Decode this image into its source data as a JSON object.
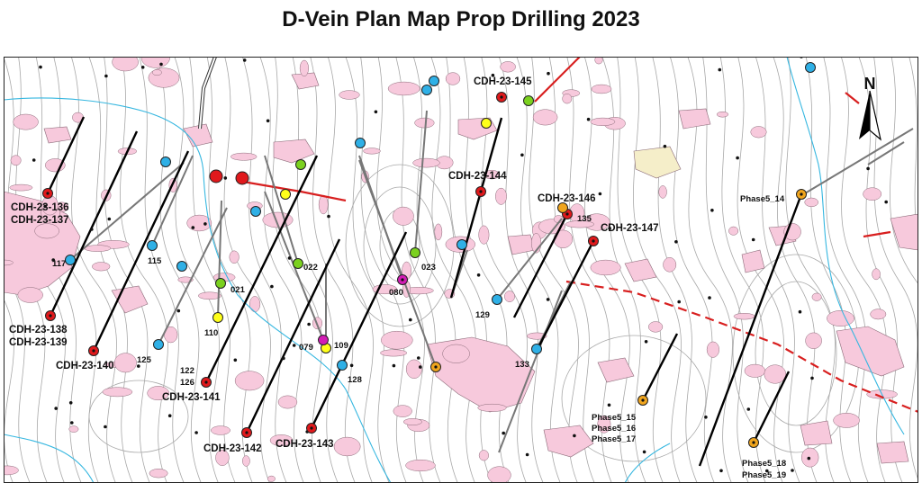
{
  "title": "D-Vein Plan Map Prop Drilling 2023",
  "north": "N",
  "colors": {
    "red": "#e0191c",
    "green": "#7bd11f",
    "blue": "#2fb0e6",
    "yellow": "#ffff1a",
    "magenta": "#d21cb4",
    "orange": "#f0a51e",
    "outcrop": "#f7c9dc",
    "contour": "#9a9a9a",
    "stream": "#36b7e0",
    "fault": "#d81f1f"
  },
  "labels": {
    "cdh136": "CDH-23-136",
    "cdh137": "CDH-23-137",
    "cdh138": "CDH-23-138",
    "cdh139": "CDH-23-139",
    "cdh140": "CDH-23-140",
    "cdh141": "CDH-23-141",
    "cdh142": "CDH-23-142",
    "cdh143": "CDH-23-143",
    "cdh144": "CDH-23-144",
    "cdh145": "CDH-23-145",
    "cdh146": "CDH-23-146",
    "cdh147": "CDH-23-147",
    "h117": "117",
    "h115": "115",
    "h125": "125",
    "h110": "110",
    "h021": "021",
    "h022": "022",
    "h122": "122",
    "h126": "126",
    "h079": "079",
    "h109": "109",
    "h128": "128",
    "h080": "080",
    "h023": "023",
    "h129": "129",
    "h133": "133",
    "h135": "135",
    "p14": "Phase5_14",
    "p15": "Phase5_15",
    "p16": "Phase5_16",
    "p17": "Phase5_17",
    "p18": "Phase5_18",
    "p19": "Phase5_19"
  }
}
